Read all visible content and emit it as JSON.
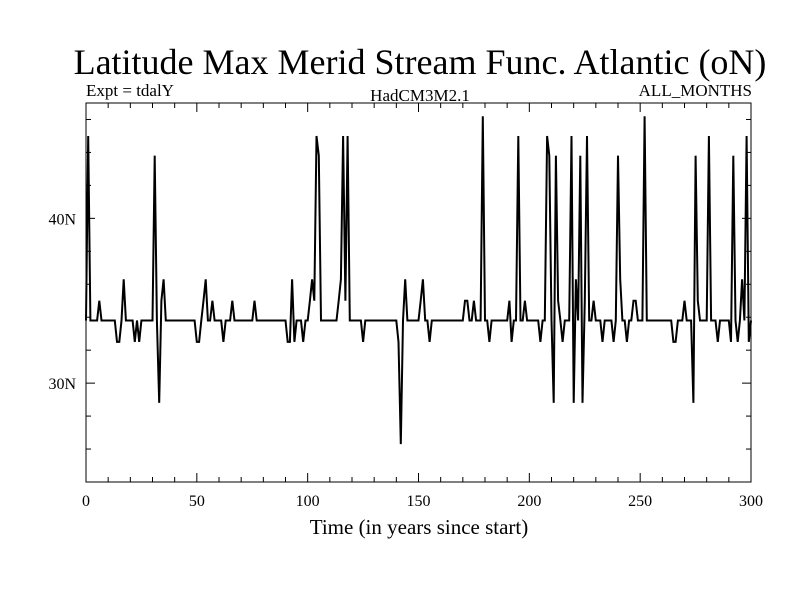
{
  "chart_data": {
    "type": "line",
    "title": "Latitude Max Merid Stream Func. Atlantic (oN)",
    "subtitle_left": "Expt = tdalY",
    "subtitle_center": "HadCM3M2.1",
    "subtitle_right": "ALL_MONTHS",
    "xlabel": "Time (in years since start)",
    "ylabel": "",
    "xlim": [
      0,
      300
    ],
    "ylim": [
      24,
      47
    ],
    "grid": false,
    "x_ticks": [
      0,
      50,
      100,
      150,
      200,
      250,
      300
    ],
    "x_tick_labels": [
      "0",
      "50",
      "100",
      "150",
      "200",
      "250",
      "300"
    ],
    "y_ticks": [
      30,
      40
    ],
    "y_tick_labels": [
      "30N",
      "40N"
    ],
    "series": [
      {
        "color": "#000000",
        "points": [
          [
            0,
            33.8
          ],
          [
            1,
            45.0
          ],
          [
            2,
            33.8
          ],
          [
            5,
            33.8
          ],
          [
            6,
            35.0
          ],
          [
            7,
            33.8
          ],
          [
            13,
            33.8
          ],
          [
            14,
            32.5
          ],
          [
            15,
            32.5
          ],
          [
            16,
            33.8
          ],
          [
            17,
            36.3
          ],
          [
            18,
            33.8
          ],
          [
            21,
            33.8
          ],
          [
            22,
            32.5
          ],
          [
            23,
            33.8
          ],
          [
            24,
            32.5
          ],
          [
            25,
            33.8
          ],
          [
            30,
            33.8
          ],
          [
            31,
            43.8
          ],
          [
            32,
            33.8
          ],
          [
            33,
            28.8
          ],
          [
            34,
            35.0
          ],
          [
            35,
            36.3
          ],
          [
            36,
            33.8
          ],
          [
            49,
            33.8
          ],
          [
            50,
            32.5
          ],
          [
            51,
            32.5
          ],
          [
            52,
            33.8
          ],
          [
            53,
            35.0
          ],
          [
            54,
            36.3
          ],
          [
            55,
            33.8
          ],
          [
            56,
            33.8
          ],
          [
            57,
            35.0
          ],
          [
            58,
            33.8
          ],
          [
            61,
            33.8
          ],
          [
            62,
            32.5
          ],
          [
            63,
            33.8
          ],
          [
            65,
            33.8
          ],
          [
            66,
            35.0
          ],
          [
            67,
            33.8
          ],
          [
            75,
            33.8
          ],
          [
            76,
            35.0
          ],
          [
            77,
            33.8
          ],
          [
            90,
            33.8
          ],
          [
            91,
            32.5
          ],
          [
            92,
            32.5
          ],
          [
            93,
            36.3
          ],
          [
            94,
            32.5
          ],
          [
            95,
            33.8
          ],
          [
            97,
            33.8
          ],
          [
            98,
            32.5
          ],
          [
            99,
            33.8
          ],
          [
            100,
            33.8
          ],
          [
            101,
            35.0
          ],
          [
            102,
            36.3
          ],
          [
            103,
            35.0
          ],
          [
            104,
            45.0
          ],
          [
            105,
            43.8
          ],
          [
            106,
            33.8
          ],
          [
            113,
            33.8
          ],
          [
            114,
            35.0
          ],
          [
            115,
            36.3
          ],
          [
            116,
            45.0
          ],
          [
            117,
            35.0
          ],
          [
            118,
            45.0
          ],
          [
            119,
            33.8
          ],
          [
            124,
            33.8
          ],
          [
            125,
            32.5
          ],
          [
            126,
            33.8
          ],
          [
            140,
            33.8
          ],
          [
            141,
            32.5
          ],
          [
            142,
            26.3
          ],
          [
            143,
            33.8
          ],
          [
            144,
            36.3
          ],
          [
            145,
            33.8
          ],
          [
            150,
            33.8
          ],
          [
            151,
            35.0
          ],
          [
            152,
            36.3
          ],
          [
            153,
            33.8
          ],
          [
            154,
            33.8
          ],
          [
            155,
            32.5
          ],
          [
            156,
            33.8
          ],
          [
            170,
            33.8
          ],
          [
            171,
            35.0
          ],
          [
            172,
            35.0
          ],
          [
            173,
            33.8
          ],
          [
            174,
            33.8
          ],
          [
            175,
            35.0
          ],
          [
            176,
            33.8
          ],
          [
            178,
            33.8
          ],
          [
            179,
            46.2
          ],
          [
            180,
            33.8
          ],
          [
            181,
            33.8
          ],
          [
            182,
            32.5
          ],
          [
            183,
            33.8
          ],
          [
            190,
            33.8
          ],
          [
            191,
            35.0
          ],
          [
            192,
            32.5
          ],
          [
            193,
            33.8
          ],
          [
            194,
            33.8
          ],
          [
            195,
            45.0
          ],
          [
            196,
            33.8
          ],
          [
            197,
            33.8
          ],
          [
            198,
            35.0
          ],
          [
            199,
            33.8
          ],
          [
            204,
            33.8
          ],
          [
            205,
            32.5
          ],
          [
            206,
            33.8
          ],
          [
            207,
            33.8
          ],
          [
            208,
            45.0
          ],
          [
            209,
            43.8
          ],
          [
            210,
            33.8
          ],
          [
            211,
            28.8
          ],
          [
            212,
            43.8
          ],
          [
            213,
            35.0
          ],
          [
            214,
            33.8
          ],
          [
            215,
            32.5
          ],
          [
            216,
            33.8
          ],
          [
            218,
            33.8
          ],
          [
            219,
            45.0
          ],
          [
            220,
            28.8
          ],
          [
            221,
            36.3
          ],
          [
            222,
            33.8
          ],
          [
            223,
            43.8
          ],
          [
            224,
            28.8
          ],
          [
            225,
            35.0
          ],
          [
            226,
            45.0
          ],
          [
            227,
            33.8
          ],
          [
            228,
            33.8
          ],
          [
            229,
            35.0
          ],
          [
            230,
            33.8
          ],
          [
            232,
            33.8
          ],
          [
            233,
            32.5
          ],
          [
            234,
            33.8
          ],
          [
            236,
            33.8
          ],
          [
            237,
            33.8
          ],
          [
            238,
            32.5
          ],
          [
            239,
            33.8
          ],
          [
            240,
            43.8
          ],
          [
            241,
            36.3
          ],
          [
            242,
            33.8
          ],
          [
            243,
            33.8
          ],
          [
            244,
            32.5
          ],
          [
            245,
            33.8
          ],
          [
            246,
            33.8
          ],
          [
            247,
            35.0
          ],
          [
            248,
            35.0
          ],
          [
            249,
            33.8
          ],
          [
            251,
            33.8
          ],
          [
            252,
            46.2
          ],
          [
            253,
            33.8
          ],
          [
            264,
            33.8
          ],
          [
            265,
            32.5
          ],
          [
            266,
            32.5
          ],
          [
            267,
            33.8
          ],
          [
            269,
            33.8
          ],
          [
            270,
            35.0
          ],
          [
            271,
            33.8
          ],
          [
            273,
            33.8
          ],
          [
            274,
            28.8
          ],
          [
            275,
            43.8
          ],
          [
            276,
            35.0
          ],
          [
            277,
            33.8
          ],
          [
            280,
            33.8
          ],
          [
            281,
            45.0
          ],
          [
            282,
            33.8
          ],
          [
            284,
            33.8
          ],
          [
            285,
            32.5
          ],
          [
            286,
            33.8
          ],
          [
            290,
            33.8
          ],
          [
            291,
            32.5
          ],
          [
            292,
            43.8
          ],
          [
            293,
            33.8
          ],
          [
            294,
            32.5
          ],
          [
            295,
            33.8
          ],
          [
            296,
            36.3
          ],
          [
            297,
            33.8
          ],
          [
            298,
            45.0
          ],
          [
            299,
            32.5
          ],
          [
            300,
            33.8
          ]
        ]
      }
    ]
  }
}
